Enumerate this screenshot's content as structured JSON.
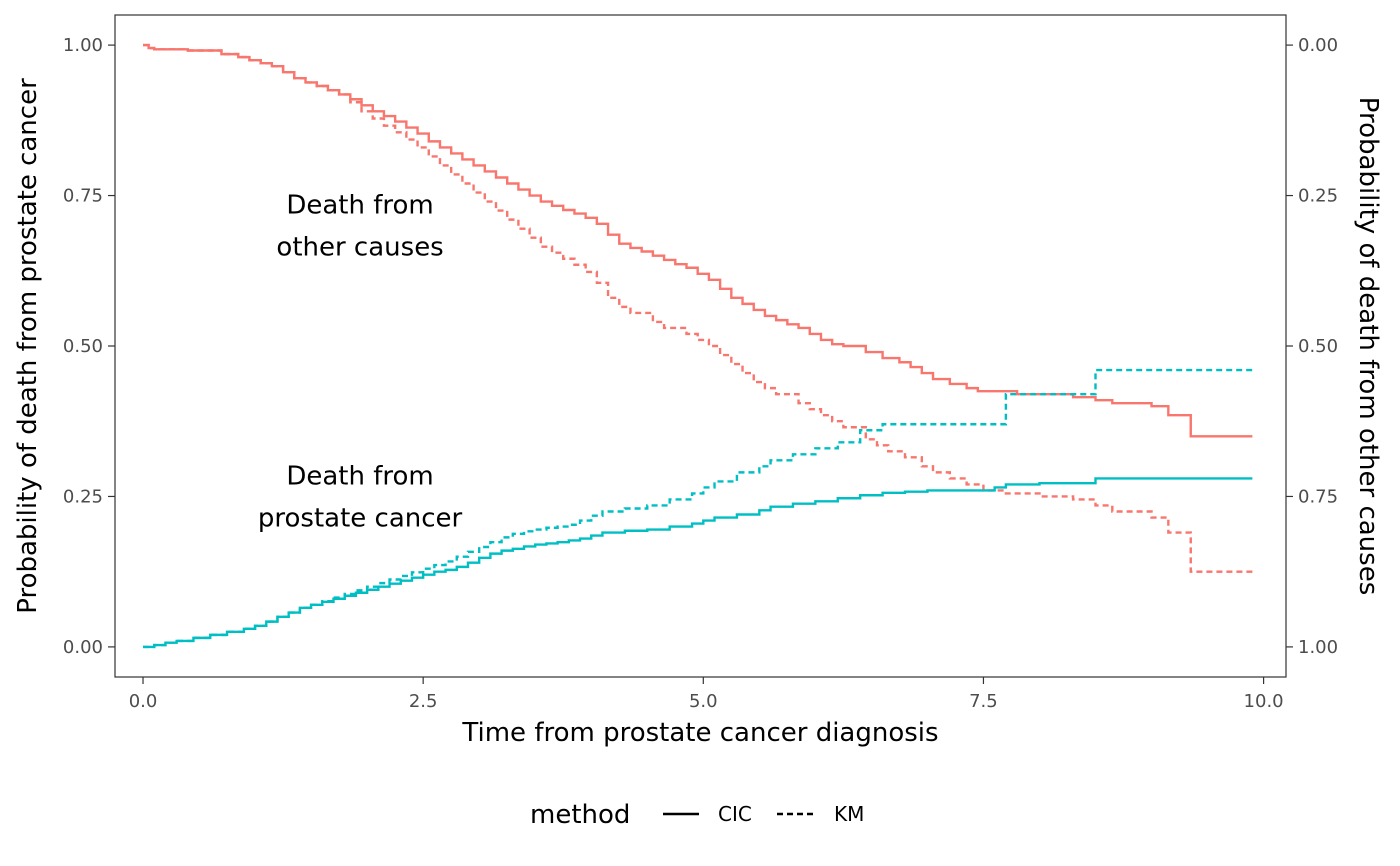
{
  "chart_data": {
    "type": "line",
    "xlabel": "Time from prostate cancer diagnosis",
    "ylabel": "Probability of death from prostate cancer",
    "y2label": "Probability of death from other causes",
    "xlim": [
      -0.25,
      10.2
    ],
    "ylim": [
      -0.05,
      1.05
    ],
    "y2_inverted": true,
    "x_ticks": [
      0.0,
      2.5,
      5.0,
      7.5,
      10.0
    ],
    "x_tick_labels": [
      "0.0",
      "2.5",
      "5.0",
      "7.5",
      "10.0"
    ],
    "y_ticks": [
      0.0,
      0.25,
      0.5,
      0.75,
      1.0
    ],
    "y_tick_labels": [
      "0.00",
      "0.25",
      "0.50",
      "0.75",
      "1.00"
    ],
    "y2_tick_labels": [
      "1.00",
      "0.75",
      "0.50",
      "0.25",
      "0.00"
    ],
    "grid": false,
    "colors": {
      "other_causes": "#F8766D",
      "prostate_cancer": "#00BFC4"
    },
    "annotations": [
      {
        "lines": [
          "Death from",
          "other causes"
        ],
        "x": 1.0,
        "y": 0.7
      },
      {
        "lines": [
          "Death from",
          "prostate cancer"
        ],
        "x": 1.0,
        "y": 0.25
      }
    ],
    "legend": {
      "title": "method",
      "position": "bottom",
      "items": [
        {
          "label": "CIC",
          "dash": "solid"
        },
        {
          "label": "KM",
          "dash": "dashed"
        }
      ]
    },
    "series": [
      {
        "cause": "other_causes",
        "method": "CIC",
        "x": [
          0,
          0.05,
          0.1,
          0.4,
          0.7,
          0.85,
          0.95,
          1.05,
          1.15,
          1.25,
          1.35,
          1.45,
          1.55,
          1.65,
          1.75,
          1.85,
          1.95,
          2.05,
          2.15,
          2.25,
          2.35,
          2.45,
          2.55,
          2.65,
          2.75,
          2.85,
          2.95,
          3.05,
          3.15,
          3.25,
          3.35,
          3.45,
          3.55,
          3.65,
          3.75,
          3.85,
          3.95,
          4.05,
          4.15,
          4.25,
          4.35,
          4.45,
          4.55,
          4.65,
          4.75,
          4.85,
          4.95,
          5.05,
          5.15,
          5.25,
          5.35,
          5.45,
          5.55,
          5.65,
          5.75,
          5.85,
          5.95,
          6.05,
          6.15,
          6.25,
          6.45,
          6.6,
          6.75,
          6.85,
          6.95,
          7.05,
          7.2,
          7.35,
          7.45,
          7.65,
          7.8,
          8.0,
          8.3,
          8.5,
          8.65,
          9.0,
          9.15,
          9.35,
          9.9
        ],
        "y": [
          1.0,
          0.995,
          0.993,
          0.991,
          0.985,
          0.98,
          0.975,
          0.97,
          0.965,
          0.955,
          0.945,
          0.938,
          0.932,
          0.925,
          0.918,
          0.91,
          0.9,
          0.89,
          0.882,
          0.873,
          0.863,
          0.853,
          0.84,
          0.83,
          0.82,
          0.81,
          0.8,
          0.79,
          0.78,
          0.77,
          0.76,
          0.75,
          0.74,
          0.733,
          0.726,
          0.72,
          0.713,
          0.703,
          0.685,
          0.67,
          0.663,
          0.657,
          0.65,
          0.643,
          0.636,
          0.63,
          0.62,
          0.61,
          0.595,
          0.58,
          0.57,
          0.56,
          0.55,
          0.543,
          0.536,
          0.53,
          0.52,
          0.51,
          0.503,
          0.5,
          0.49,
          0.48,
          0.473,
          0.465,
          0.455,
          0.445,
          0.437,
          0.43,
          0.425,
          0.425,
          0.42,
          0.42,
          0.415,
          0.41,
          0.405,
          0.4,
          0.385,
          0.35,
          0.35
        ]
      },
      {
        "cause": "other_causes",
        "method": "KM",
        "x": [
          0,
          0.05,
          0.1,
          0.4,
          0.7,
          0.85,
          0.95,
          1.05,
          1.15,
          1.25,
          1.35,
          1.45,
          1.55,
          1.65,
          1.75,
          1.85,
          1.95,
          2.05,
          2.15,
          2.25,
          2.35,
          2.45,
          2.55,
          2.65,
          2.75,
          2.85,
          2.95,
          3.05,
          3.15,
          3.25,
          3.35,
          3.45,
          3.55,
          3.65,
          3.75,
          3.85,
          3.95,
          4.05,
          4.15,
          4.25,
          4.35,
          4.55,
          4.65,
          4.85,
          4.95,
          5.05,
          5.15,
          5.25,
          5.35,
          5.45,
          5.55,
          5.65,
          5.85,
          5.95,
          6.05,
          6.15,
          6.25,
          6.45,
          6.55,
          6.65,
          6.8,
          6.95,
          7.05,
          7.2,
          7.35,
          7.5,
          7.7,
          8.0,
          8.3,
          8.5,
          8.65,
          9.0,
          9.15,
          9.35,
          9.9
        ],
        "y": [
          1.0,
          0.995,
          0.993,
          0.991,
          0.985,
          0.98,
          0.975,
          0.97,
          0.965,
          0.955,
          0.945,
          0.938,
          0.932,
          0.925,
          0.918,
          0.905,
          0.89,
          0.878,
          0.866,
          0.855,
          0.843,
          0.83,
          0.815,
          0.8,
          0.785,
          0.77,
          0.755,
          0.74,
          0.725,
          0.71,
          0.695,
          0.68,
          0.665,
          0.655,
          0.645,
          0.635,
          0.623,
          0.605,
          0.58,
          0.565,
          0.555,
          0.54,
          0.53,
          0.52,
          0.51,
          0.5,
          0.485,
          0.47,
          0.455,
          0.44,
          0.43,
          0.42,
          0.405,
          0.395,
          0.385,
          0.375,
          0.365,
          0.345,
          0.335,
          0.325,
          0.315,
          0.3,
          0.29,
          0.28,
          0.27,
          0.26,
          0.255,
          0.25,
          0.245,
          0.235,
          0.225,
          0.215,
          0.19,
          0.125,
          0.125
        ]
      },
      {
        "cause": "prostate_cancer",
        "method": "CIC",
        "x": [
          0,
          0.1,
          0.2,
          0.3,
          0.45,
          0.6,
          0.75,
          0.9,
          1.0,
          1.1,
          1.2,
          1.3,
          1.4,
          1.5,
          1.6,
          1.7,
          1.8,
          1.9,
          2.0,
          2.1,
          2.2,
          2.3,
          2.4,
          2.5,
          2.6,
          2.7,
          2.8,
          2.9,
          3.0,
          3.1,
          3.2,
          3.3,
          3.4,
          3.5,
          3.6,
          3.7,
          3.8,
          3.9,
          4.0,
          4.1,
          4.3,
          4.5,
          4.7,
          4.9,
          5.0,
          5.1,
          5.3,
          5.5,
          5.6,
          5.8,
          6.0,
          6.2,
          6.4,
          6.6,
          6.8,
          7.0,
          7.4,
          7.6,
          7.7,
          8.0,
          8.5,
          9.9
        ],
        "y": [
          0.0,
          0.003,
          0.007,
          0.01,
          0.015,
          0.02,
          0.025,
          0.03,
          0.035,
          0.042,
          0.05,
          0.057,
          0.065,
          0.07,
          0.075,
          0.08,
          0.085,
          0.09,
          0.095,
          0.1,
          0.105,
          0.11,
          0.115,
          0.12,
          0.125,
          0.128,
          0.133,
          0.14,
          0.148,
          0.155,
          0.16,
          0.163,
          0.167,
          0.17,
          0.172,
          0.174,
          0.177,
          0.18,
          0.185,
          0.19,
          0.193,
          0.195,
          0.2,
          0.205,
          0.21,
          0.215,
          0.22,
          0.227,
          0.233,
          0.238,
          0.242,
          0.247,
          0.252,
          0.256,
          0.258,
          0.26,
          0.26,
          0.265,
          0.27,
          0.272,
          0.28,
          0.28
        ]
      },
      {
        "cause": "prostate_cancer",
        "method": "KM",
        "x": [
          0,
          0.1,
          0.2,
          0.3,
          0.45,
          0.6,
          0.75,
          0.9,
          1.0,
          1.1,
          1.2,
          1.3,
          1.4,
          1.5,
          1.6,
          1.7,
          1.8,
          1.9,
          2.0,
          2.1,
          2.2,
          2.3,
          2.4,
          2.5,
          2.6,
          2.7,
          2.8,
          2.9,
          3.0,
          3.1,
          3.2,
          3.3,
          3.4,
          3.5,
          3.6,
          3.7,
          3.8,
          3.9,
          4.0,
          4.1,
          4.3,
          4.5,
          4.7,
          4.9,
          5.0,
          5.1,
          5.3,
          5.5,
          5.6,
          5.8,
          6.0,
          6.2,
          6.4,
          6.6,
          6.8,
          7.0,
          7.6,
          7.7,
          8.0,
          8.5,
          9.9
        ],
        "y": [
          0.0,
          0.003,
          0.007,
          0.01,
          0.015,
          0.02,
          0.025,
          0.03,
          0.035,
          0.042,
          0.05,
          0.057,
          0.065,
          0.07,
          0.076,
          0.082,
          0.088,
          0.094,
          0.1,
          0.106,
          0.112,
          0.118,
          0.124,
          0.13,
          0.136,
          0.142,
          0.15,
          0.158,
          0.166,
          0.174,
          0.182,
          0.188,
          0.192,
          0.195,
          0.198,
          0.2,
          0.203,
          0.21,
          0.218,
          0.225,
          0.23,
          0.235,
          0.245,
          0.255,
          0.265,
          0.275,
          0.29,
          0.3,
          0.31,
          0.32,
          0.33,
          0.34,
          0.36,
          0.37,
          0.37,
          0.37,
          0.37,
          0.42,
          0.42,
          0.46,
          0.46
        ]
      }
    ]
  }
}
